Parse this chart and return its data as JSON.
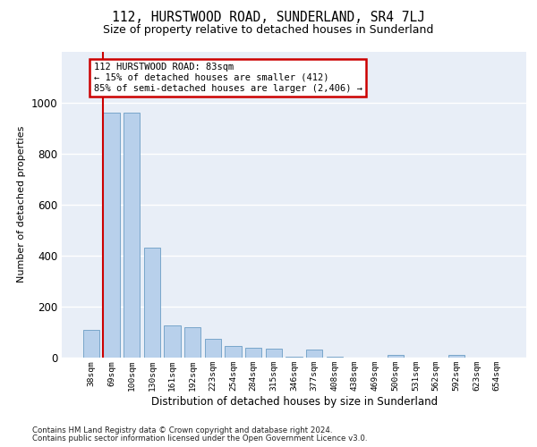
{
  "title": "112, HURSTWOOD ROAD, SUNDERLAND, SR4 7LJ",
  "subtitle": "Size of property relative to detached houses in Sunderland",
  "xlabel": "Distribution of detached houses by size in Sunderland",
  "ylabel": "Number of detached properties",
  "categories": [
    "38sqm",
    "69sqm",
    "100sqm",
    "130sqm",
    "161sqm",
    "192sqm",
    "223sqm",
    "254sqm",
    "284sqm",
    "315sqm",
    "346sqm",
    "377sqm",
    "408sqm",
    "438sqm",
    "469sqm",
    "500sqm",
    "531sqm",
    "562sqm",
    "592sqm",
    "623sqm",
    "654sqm"
  ],
  "values": [
    110,
    960,
    960,
    430,
    125,
    120,
    75,
    45,
    40,
    35,
    5,
    30,
    5,
    0,
    0,
    10,
    0,
    0,
    10,
    0,
    0
  ],
  "bar_color": "#b8d0eb",
  "bar_edge_color": "#6b9dc4",
  "red_line_x": 0.6,
  "annotation_line1": "112 HURSTWOOD ROAD: 83sqm",
  "annotation_line2": "← 15% of detached houses are smaller (412)",
  "annotation_line3": "85% of semi-detached houses are larger (2,406) →",
  "annotation_box_facecolor": "#ffffff",
  "annotation_box_edgecolor": "#cc0000",
  "ylim_max": 1200,
  "yticks": [
    0,
    200,
    400,
    600,
    800,
    1000
  ],
  "plot_bg_color": "#e8eef7",
  "grid_color": "#ffffff",
  "title_fontsize": 10.5,
  "subtitle_fontsize": 9,
  "footer_line1": "Contains HM Land Registry data © Crown copyright and database right 2024.",
  "footer_line2": "Contains public sector information licensed under the Open Government Licence v3.0."
}
